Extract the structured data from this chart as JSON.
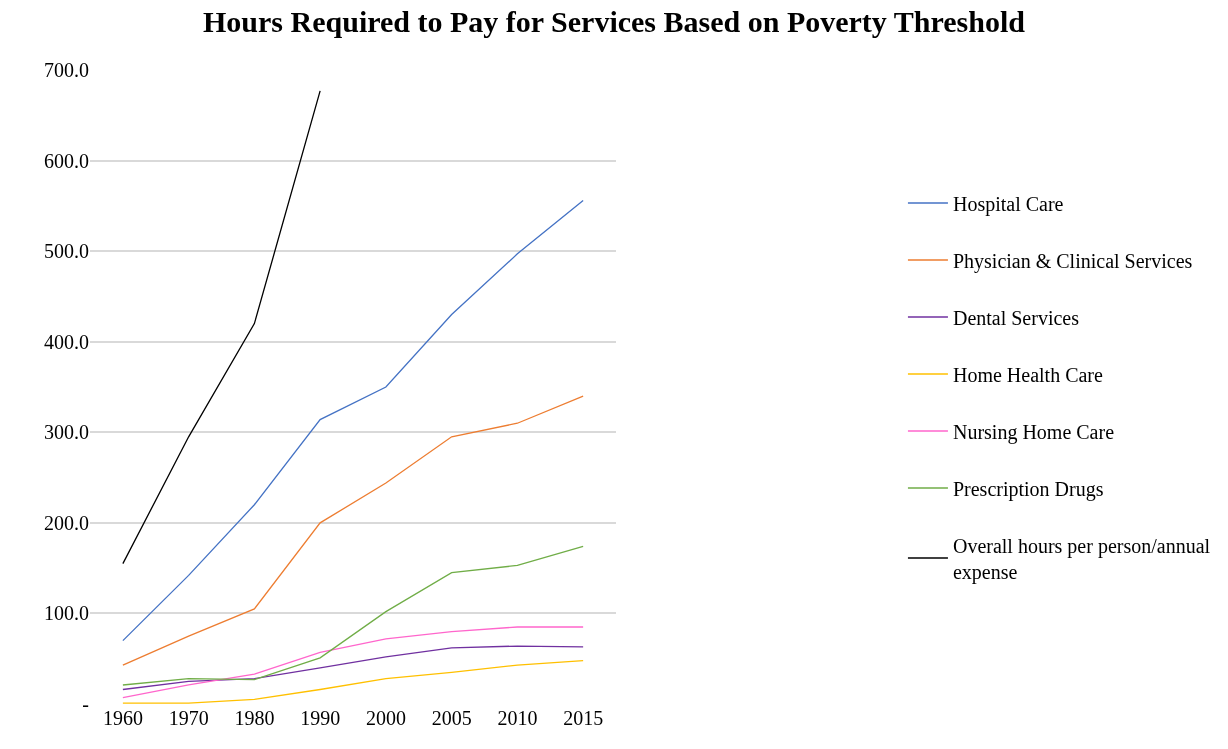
{
  "chart_data": {
    "type": "line",
    "title": "Hours Required to Pay for Services Based on Poverty Threshold",
    "categories": [
      "1960",
      "1970",
      "1980",
      "1990",
      "2000",
      "2005",
      "2010",
      "2015"
    ],
    "series": [
      {
        "name": "Hospital Care",
        "color": "#4472c4",
        "values": [
          70,
          142,
          220,
          314,
          350,
          430,
          497,
          556
        ]
      },
      {
        "name": "Physician & Clinical Services",
        "color": "#ed7d31",
        "values": [
          43,
          75,
          105,
          200,
          244,
          295,
          310,
          340
        ]
      },
      {
        "name": "Dental Services",
        "color": "#7030a0",
        "values": [
          16,
          25,
          28,
          40,
          52,
          62,
          64,
          63
        ]
      },
      {
        "name": "Home Health Care",
        "color": "#ffc000",
        "values": [
          1,
          1,
          5,
          16,
          28,
          35,
          43,
          48
        ]
      },
      {
        "name": "Nursing Home Care",
        "color": "#ff66cc",
        "values": [
          7,
          21,
          33,
          57,
          72,
          80,
          85,
          85
        ]
      },
      {
        "name": "Prescription Drugs",
        "color": "#70ad47",
        "values": [
          21,
          28,
          27,
          51,
          102,
          145,
          153,
          174
        ]
      },
      {
        "name": "Overall hours per person/annual expense",
        "color": "#000000",
        "values": [
          155,
          295,
          420,
          677,
          null,
          null,
          null,
          null
        ]
      }
    ],
    "ylim": [
      0,
      700
    ],
    "yticks": [
      {
        "value": 0,
        "label": "-"
      },
      {
        "value": 100,
        "label": "100.0"
      },
      {
        "value": 200,
        "label": "200.0"
      },
      {
        "value": 300,
        "label": "300.0"
      },
      {
        "value": 400,
        "label": "400.0"
      },
      {
        "value": 500,
        "label": "500.0"
      },
      {
        "value": 600,
        "label": "600.0"
      },
      {
        "value": 700,
        "label": "700.0"
      }
    ],
    "grid": "y",
    "legend": "right",
    "marker": "none",
    "line_style": "solid"
  }
}
